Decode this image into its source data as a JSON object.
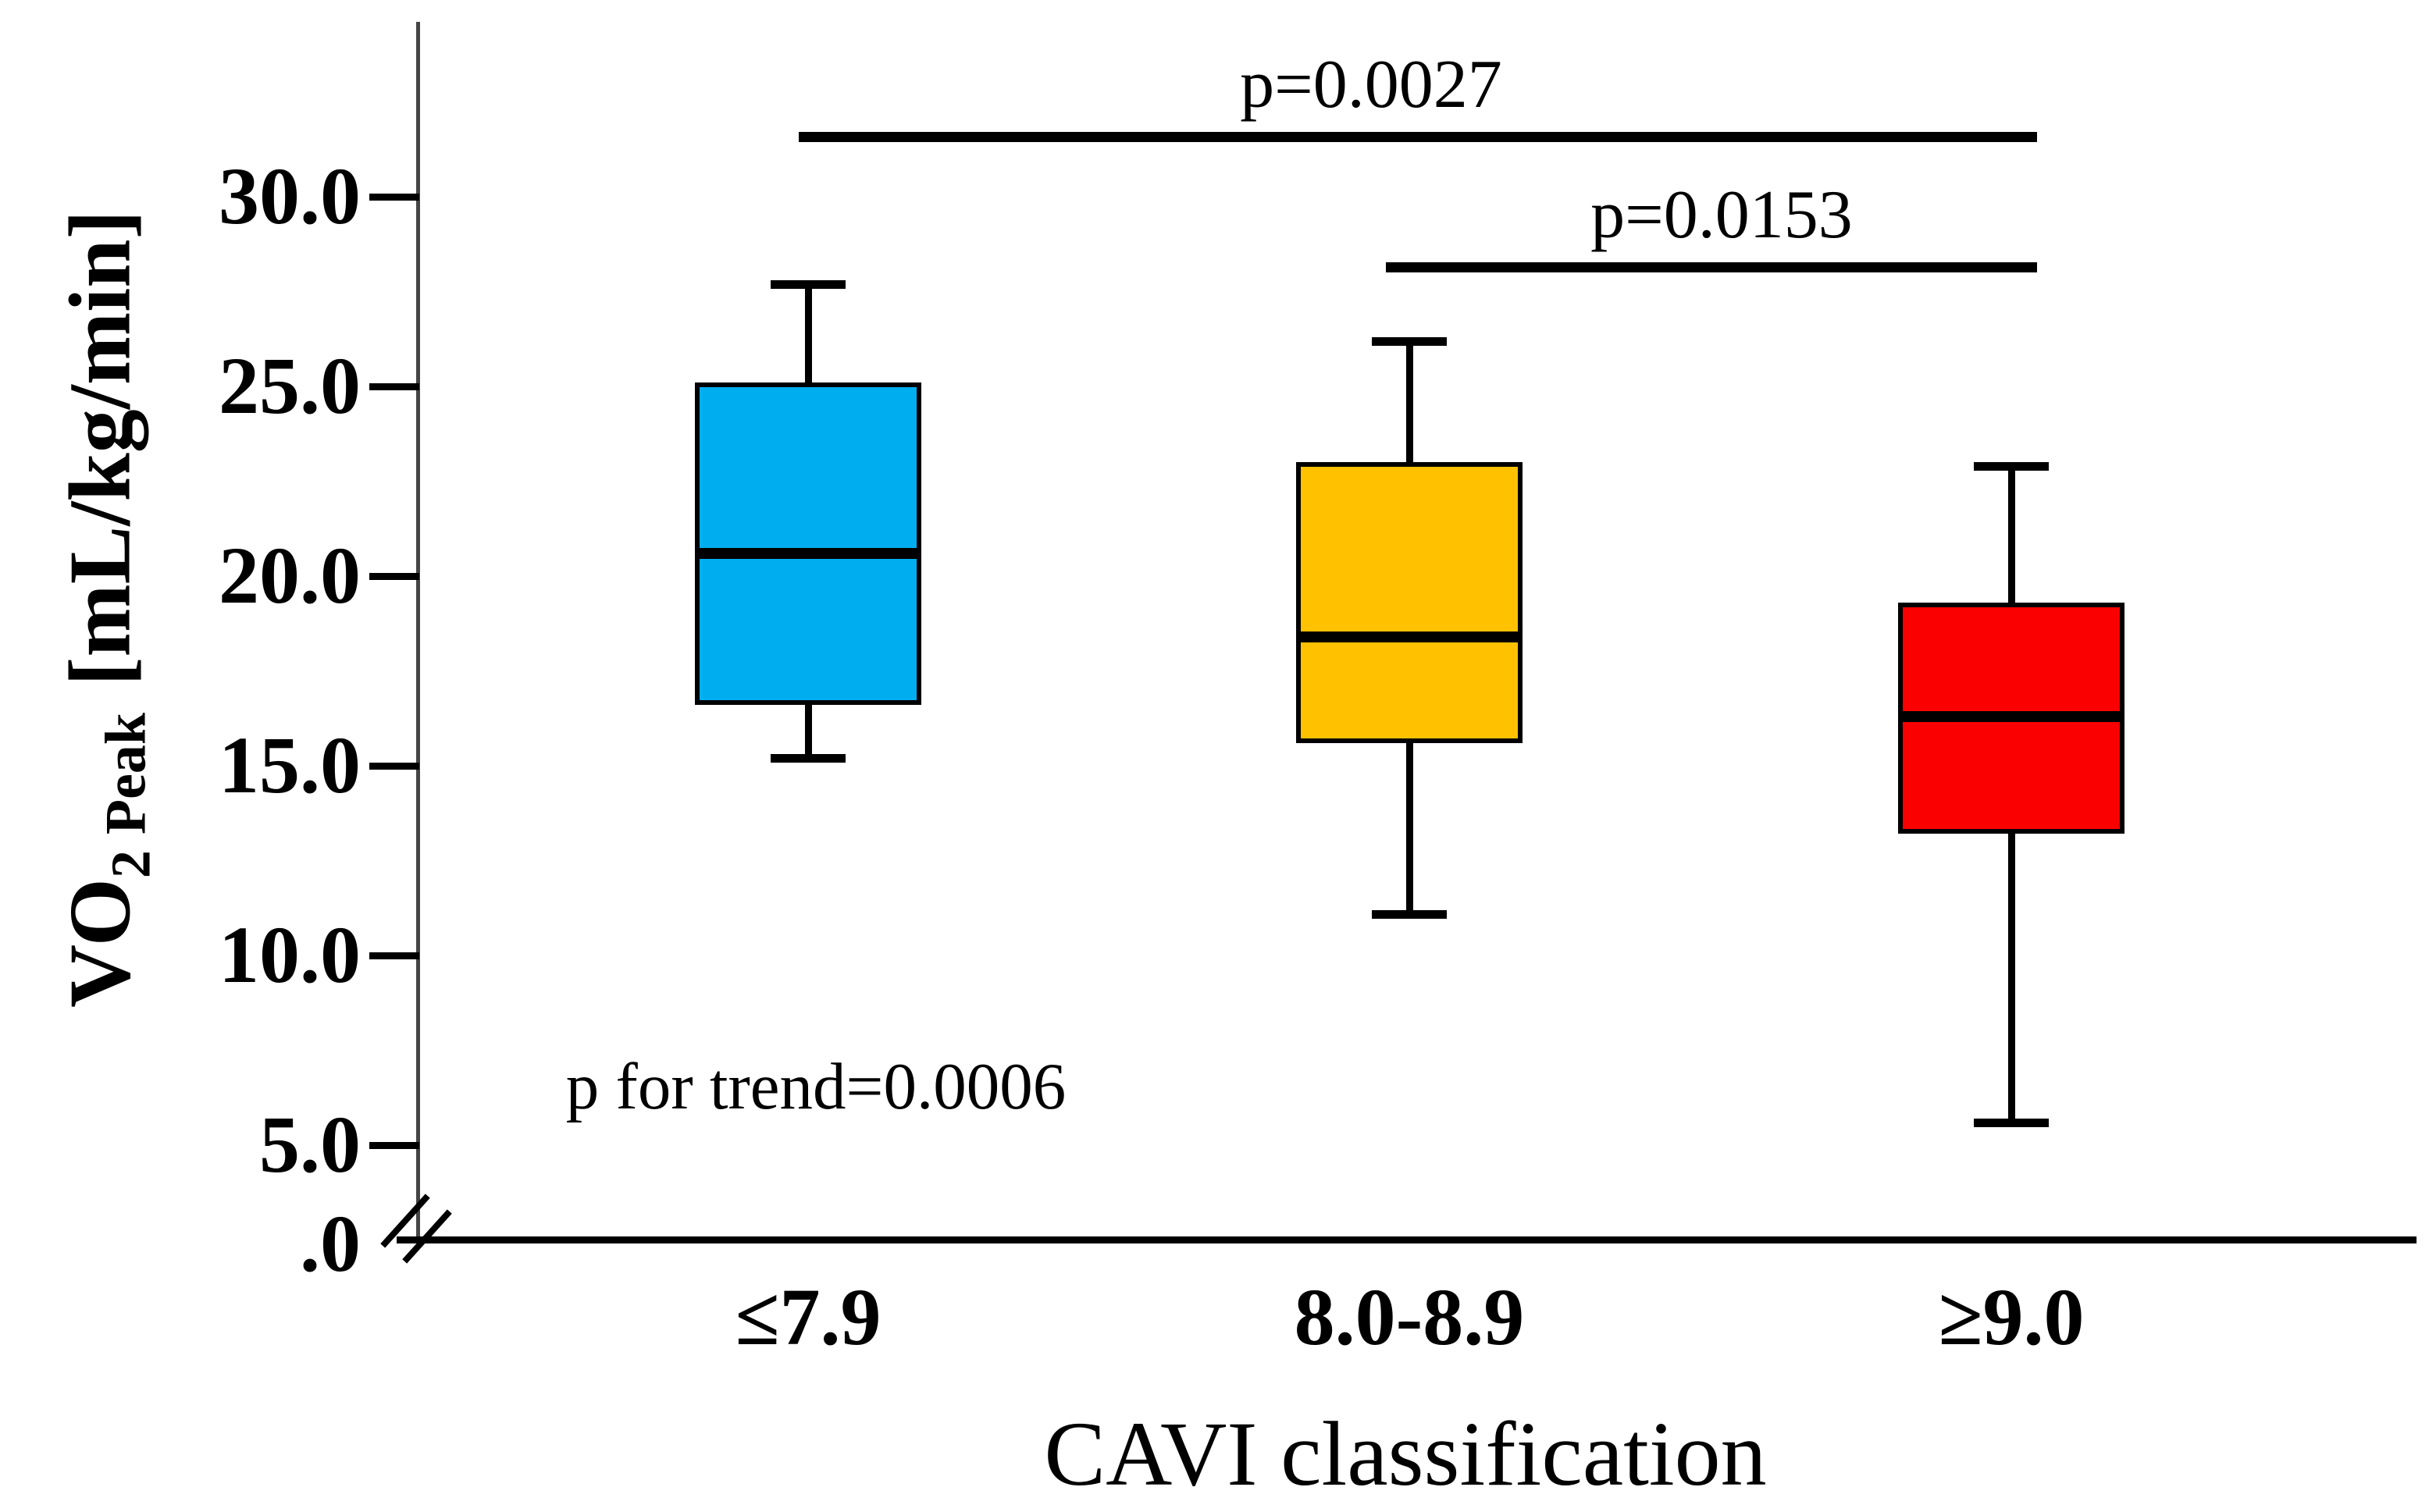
{
  "figure": {
    "background": "#ffffff",
    "ylabel": {
      "main": "VO",
      "sub": "2",
      "subscript_word": "Peak",
      "units": "[mL/kg/min]"
    },
    "xlabel": "CAVI classification"
  },
  "chart_data": {
    "type": "box",
    "title": "",
    "xlabel": "CAVI classification",
    "ylabel": "VO2 Peak [mL/kg/min]",
    "ylim": [
      0,
      32.5
    ],
    "axis_break_between": [
      0,
      5
    ],
    "grid": false,
    "yticks": [
      {
        "label": "30.0",
        "value": 30.0
      },
      {
        "label": "25.0",
        "value": 25.0
      },
      {
        "label": "20.0",
        "value": 20.0
      },
      {
        "label": "15.0",
        "value": 15.0
      },
      {
        "label": "10.0",
        "value": 10.0
      },
      {
        "label": "5.0",
        "value": 5.0
      },
      {
        "label": ".0",
        "value": 0.0,
        "at_axis_break": true
      }
    ],
    "categories": [
      "≤7.9",
      "8.0-8.9",
      "≥9.0"
    ],
    "groups": [
      {
        "category": "≤7.9",
        "color": "#00AEEF",
        "whisker_low": 15.2,
        "q1": 16.6,
        "median": 20.6,
        "q3": 25.1,
        "whisker_high": 27.7
      },
      {
        "category": "8.0-8.9",
        "color": "#FFC100",
        "whisker_low": 11.1,
        "q1": 15.6,
        "median": 18.4,
        "q3": 23.0,
        "whisker_high": 26.2
      },
      {
        "category": "≥9.0",
        "color": "#FB0000",
        "whisker_low": 5.6,
        "q1": 13.2,
        "median": 16.3,
        "q3": 19.3,
        "whisker_high": 22.9
      }
    ],
    "annotations": {
      "comparisons": [
        {
          "label": "p=0.0027",
          "between": [
            "≤7.9",
            "≥9.0"
          ]
        },
        {
          "label": "p=0.0153",
          "between": [
            "8.0-8.9",
            "≥9.0"
          ]
        }
      ],
      "trend": "p for trend=0.0006"
    }
  }
}
